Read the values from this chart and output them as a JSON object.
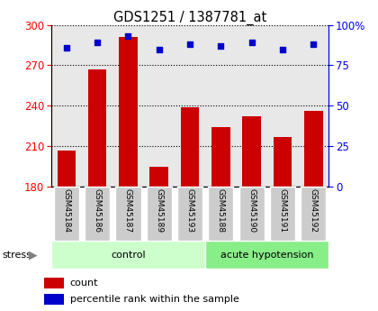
{
  "title": "GDS1251 / 1387781_at",
  "samples": [
    "GSM45184",
    "GSM45186",
    "GSM45187",
    "GSM45189",
    "GSM45193",
    "GSM45188",
    "GSM45190",
    "GSM45191",
    "GSM45192"
  ],
  "counts": [
    207,
    267,
    291,
    195,
    239,
    224,
    232,
    217,
    236
  ],
  "percentiles": [
    86,
    89,
    93,
    85,
    88,
    87,
    89,
    85,
    88
  ],
  "groups": [
    "control",
    "control",
    "control",
    "control",
    "control",
    "acute hypotension",
    "acute hypotension",
    "acute hypotension",
    "acute hypotension"
  ],
  "group_colors": {
    "control": "#ccffcc",
    "acute hypotension": "#88ee88"
  },
  "ylim_left": [
    180,
    300
  ],
  "ylim_right": [
    0,
    100
  ],
  "yticks_left": [
    180,
    210,
    240,
    270,
    300
  ],
  "yticks_right": [
    0,
    25,
    50,
    75,
    100
  ],
  "bar_color": "#cc0000",
  "dot_color": "#0000cc",
  "bar_bottom": 180,
  "sample_box_color": "#cccccc",
  "plot_bg_color": "#e8e8e8",
  "stress_label": "stress",
  "legend_count_label": "count",
  "legend_pct_label": "percentile rank within the sample"
}
